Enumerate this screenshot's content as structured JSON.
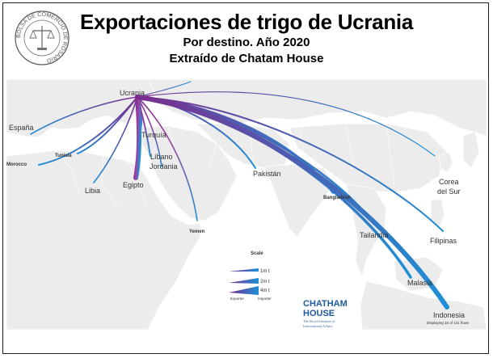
{
  "header": {
    "title": "Exportaciones de trigo de Ucrania",
    "subtitle": "Por destino. Año 2020",
    "source_line": "Extraído de Chatam House"
  },
  "seal": {
    "text": "BOLSA DE COMERCIO DE ROSARIO"
  },
  "origin": "Ucrania",
  "destinations": [
    {
      "key": "espana",
      "label": "España"
    },
    {
      "key": "tunisia",
      "label": "Tunisia"
    },
    {
      "key": "morocco",
      "label": "Morocco"
    },
    {
      "key": "libia",
      "label": "Libia"
    },
    {
      "key": "turquia",
      "label": "Turquía"
    },
    {
      "key": "libano",
      "label": "Líbano"
    },
    {
      "key": "jordania",
      "label": "Jordania"
    },
    {
      "key": "egipto",
      "label": "Egipto"
    },
    {
      "key": "yemen",
      "label": "Yemen"
    },
    {
      "key": "pakistan",
      "label": "Pakistán"
    },
    {
      "key": "bangladesh",
      "label": "Bangladesh"
    },
    {
      "key": "tailandia",
      "label": "Tailandia"
    },
    {
      "key": "corea",
      "label": "Corea del Sur"
    },
    {
      "key": "filipinas",
      "label": "Filipinas"
    },
    {
      "key": "malasia",
      "label": "Malasia"
    },
    {
      "key": "indonesia",
      "label": "Indonesia"
    }
  ],
  "legend": {
    "title": "Scale",
    "items": [
      "1m t",
      "2m t",
      "4m t"
    ],
    "exporter": "Exporter",
    "importer": "Importer"
  },
  "branding": {
    "logo_line1": "CHATHAM",
    "logo_line2": "HOUSE",
    "tag1": "The Royal Institute of",
    "tag2": "International Affairs"
  },
  "footnote": "Displaying 16 of 121 flows",
  "colors": {
    "exporter": "#7b2d8e",
    "importer": "#1e90d6",
    "land": "#ececec",
    "border": "#ffffff"
  }
}
